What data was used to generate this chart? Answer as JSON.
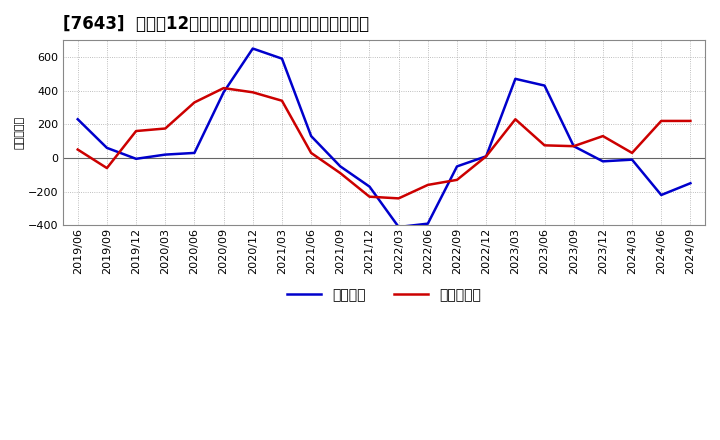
{
  "title": "[7643]  利益だ12か月移動合計の対前年同期増減額の推移",
  "ylabel": "（百万円）",
  "x_labels": [
    "2019/06",
    "2019/09",
    "2019/12",
    "2020/03",
    "2020/06",
    "2020/09",
    "2020/12",
    "2021/03",
    "2021/06",
    "2021/09",
    "2021/12",
    "2022/03",
    "2022/06",
    "2022/09",
    "2022/12",
    "2023/03",
    "2023/06",
    "2023/09",
    "2023/12",
    "2024/03",
    "2024/06",
    "2024/09"
  ],
  "keijo_rieki": [
    230,
    60,
    -5,
    20,
    30,
    390,
    650,
    590,
    130,
    -50,
    -170,
    -410,
    -390,
    -50,
    10,
    470,
    430,
    70,
    -20,
    -10,
    -220,
    -150
  ],
  "touki_jun_rieki": [
    50,
    -60,
    160,
    175,
    330,
    415,
    390,
    340,
    30,
    -90,
    -230,
    -240,
    -160,
    -130,
    10,
    230,
    75,
    70,
    130,
    30,
    220,
    220
  ],
  "ylim_min": -400,
  "ylim_max": 700,
  "yticks": [
    -400,
    -200,
    0,
    200,
    400,
    600
  ],
  "line_color_keijo": "#0000cc",
  "line_color_touki": "#cc0000",
  "legend_keijo": "経常利益",
  "legend_touki": "当期純利益",
  "bg_color": "#ffffff",
  "grid_color": "#aaaaaa",
  "title_fontsize": 12,
  "tick_fontsize": 8,
  "ylabel_fontsize": 8,
  "legend_fontsize": 10,
  "linewidth": 1.8
}
